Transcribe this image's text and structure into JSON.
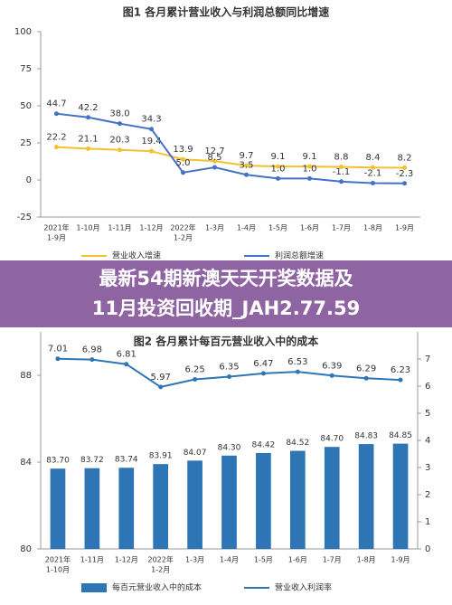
{
  "chart_data": [
    {
      "type": "line",
      "title": "图1 各月累计营业收入与利润总额同比增速",
      "categories": [
        [
          "2021年",
          "1-9月"
        ],
        [
          "1-10月"
        ],
        [
          "1-11月"
        ],
        [
          "1-12月"
        ],
        [
          "2022年",
          "1-2月"
        ],
        [
          "1-3月"
        ],
        [
          "1-4月"
        ],
        [
          "1-5月"
        ],
        [
          "1-6月"
        ],
        [
          "1-7月"
        ],
        [
          "1-8月"
        ],
        [
          "1-9月"
        ]
      ],
      "series": [
        {
          "name": "营业收入增速",
          "color": "#f2c12e",
          "values": [
            22.2,
            21.1,
            20.3,
            19.4,
            13.9,
            12.7,
            9.7,
            9.1,
            9.1,
            8.8,
            8.4,
            8.2
          ],
          "value_labels": [
            "22.2",
            "21.1",
            "20.3",
            "19.4",
            "13.9",
            "12.7",
            "9.7",
            "9.1",
            "9.1",
            "8.8",
            "8.4",
            "8.2"
          ]
        },
        {
          "name": "利润总额增速",
          "color": "#4472c4",
          "values": [
            44.7,
            42.2,
            38.0,
            34.3,
            5.0,
            8.5,
            3.5,
            1.0,
            1.0,
            -1.1,
            -2.1,
            -2.3
          ],
          "value_labels": [
            "44.7",
            "42.2",
            "38.0",
            "34.3",
            "5.0",
            "8.5",
            "3.5",
            "1.0",
            "1.0",
            "-1.1",
            "-2.1",
            "-2.3"
          ]
        }
      ],
      "ylim": [
        -25,
        100
      ],
      "yticks": [
        -25,
        0,
        25,
        50,
        75,
        100
      ]
    },
    {
      "type": "bar-line",
      "title": "图2 各月累计每百元营业收入中的成本",
      "categories": [
        [
          "2021年",
          "1-10月"
        ],
        [
          "1-11月"
        ],
        [
          "1-12月"
        ],
        [
          "2022年",
          "1-2月"
        ],
        [
          "1-3月"
        ],
        [
          "1-4月"
        ],
        [
          "1-5月"
        ],
        [
          "1-6月"
        ],
        [
          "1-7月"
        ],
        [
          "1-8月"
        ],
        [
          "1-9月"
        ]
      ],
      "series": [
        {
          "name": "每百元营业收入中的成本",
          "color": "#2e75b6",
          "values": [
            83.7,
            83.72,
            83.74,
            83.91,
            84.07,
            84.3,
            84.42,
            84.52,
            84.7,
            84.83,
            84.85
          ],
          "value_labels": [
            "83.70",
            "83.72",
            "83.74",
            "83.91",
            "84.07",
            "84.30",
            "84.42",
            "84.52",
            "84.70",
            "84.83",
            "84.85"
          ]
        },
        {
          "name": "营业收入利润率",
          "color": "#2e75b6",
          "axis": "y2",
          "values": [
            7.01,
            6.98,
            6.81,
            5.97,
            6.25,
            6.35,
            6.47,
            6.53,
            6.39,
            6.29,
            6.23
          ],
          "value_labels": [
            "7.01",
            "6.98",
            "6.81",
            "5.97",
            "6.25",
            "6.35",
            "6.47",
            "6.53",
            "6.39",
            "6.29",
            "6.23"
          ]
        }
      ],
      "ylim": [
        80,
        90
      ],
      "yticks": [
        80,
        84,
        88
      ],
      "y2lim": [
        0,
        8
      ],
      "y2ticks": [
        0,
        1,
        2,
        3,
        4,
        5,
        6,
        7
      ]
    }
  ],
  "banner": {
    "lines": [
      "最新54期新澳天天开奖数据及",
      "11月投资回收期_JAH2.77.59"
    ]
  }
}
